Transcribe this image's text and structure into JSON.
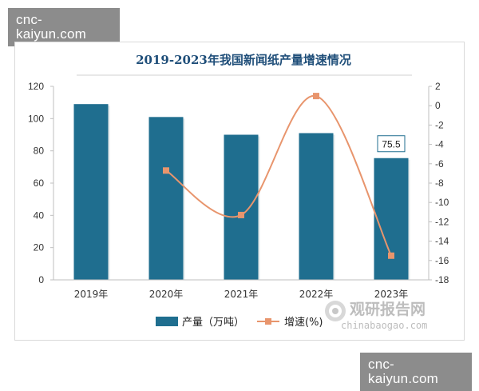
{
  "watermark": {
    "top": "cnc-kaiyun.com",
    "bottom": "cnc-kaiyun.com"
  },
  "brand": {
    "name": "观研报告网",
    "url": "chinabaogao.com"
  },
  "colors": {
    "bar": "#1f6e8f",
    "line": "#e8956d",
    "title": "#1f4e79",
    "axis": "#bfbfbf"
  },
  "chart_data": {
    "type": "bar",
    "title": "2019-2023年我国新闻纸产量增速情况",
    "categories": [
      "2019年",
      "2020年",
      "2021年",
      "2022年",
      "2023年"
    ],
    "series": [
      {
        "name": "产量（万吨）",
        "type": "bar",
        "axis": "left",
        "values": [
          109,
          101,
          90,
          91,
          75.5
        ]
      },
      {
        "name": "增速(%)",
        "type": "line",
        "axis": "right",
        "values": [
          null,
          -6.7,
          -11.3,
          1.0,
          -15.5
        ]
      }
    ],
    "data_labels": [
      {
        "category": "2023年",
        "series": "产量（万吨）",
        "text": "75.5"
      }
    ],
    "y_left": {
      "min": 0,
      "max": 120,
      "ticks": [
        0,
        20,
        40,
        60,
        80,
        100,
        120
      ]
    },
    "y_right": {
      "min": -18,
      "max": 2,
      "ticks": [
        2,
        0,
        -2,
        -4,
        -6,
        -8,
        -10,
        -12,
        -14,
        -16,
        -18
      ]
    },
    "grid": false,
    "legend_position": "bottom"
  }
}
